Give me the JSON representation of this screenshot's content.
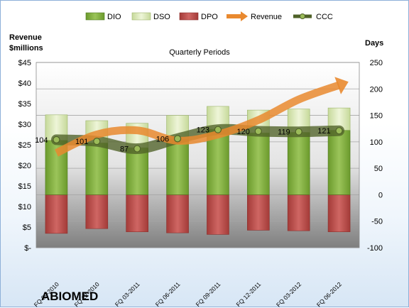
{
  "chart_data": {
    "type": "bar",
    "title": "Quarterly Periods",
    "company": "ABIOMED",
    "left_axis_label": [
      "Revenue",
      "$millions"
    ],
    "right_axis_label": "Days",
    "left_ticks": [
      "$-",
      "$5",
      "$10",
      "$15",
      "$20",
      "$25",
      "$30",
      "$35",
      "$40",
      "$45"
    ],
    "right_ticks": [
      "-100",
      "-50",
      "0",
      "50",
      "100",
      "150",
      "200",
      "250"
    ],
    "left_ylim": [
      0,
      45
    ],
    "right_ylim": [
      -100,
      250
    ],
    "categories": [
      "FQ 09-2010",
      "FQ 12-2010",
      "FQ 03-2011",
      "FQ 06-2011",
      "FQ 09-2011",
      "FQ 12-2011",
      "FQ 03-2012",
      "FQ 06-2012"
    ],
    "legend": [
      "DIO",
      "DSO",
      "DPO",
      "Revenue",
      "CCC"
    ],
    "legend_position": "top",
    "series": [
      {
        "name": "DIO",
        "axis": "right",
        "color": "#7faa37",
        "values": [
          103,
          98,
          89,
          105,
          124,
          117,
          118,
          122
        ]
      },
      {
        "name": "DSO",
        "axis": "right",
        "color": "#d4e3a8",
        "values": [
          48,
          42,
          46,
          45,
          43,
          43,
          44,
          42
        ]
      },
      {
        "name": "DPO",
        "axis": "right",
        "color": "#c0504d",
        "values": [
          -73,
          -64,
          -70,
          -72,
          -75,
          -67,
          -68,
          -70
        ]
      },
      {
        "name": "Revenue",
        "axis": "left",
        "color": "#e9892f",
        "values": [
          23,
          27.5,
          28.5,
          26,
          27.5,
          31,
          36,
          39.5
        ]
      },
      {
        "name": "CCC",
        "axis": "right",
        "color": "#4f6228",
        "values": [
          104,
          101,
          87,
          106,
          123,
          120,
          119,
          121
        ],
        "labels": [
          "104",
          "101",
          "87",
          "106",
          "123",
          "120",
          "119",
          "121"
        ]
      }
    ],
    "grid": true
  }
}
